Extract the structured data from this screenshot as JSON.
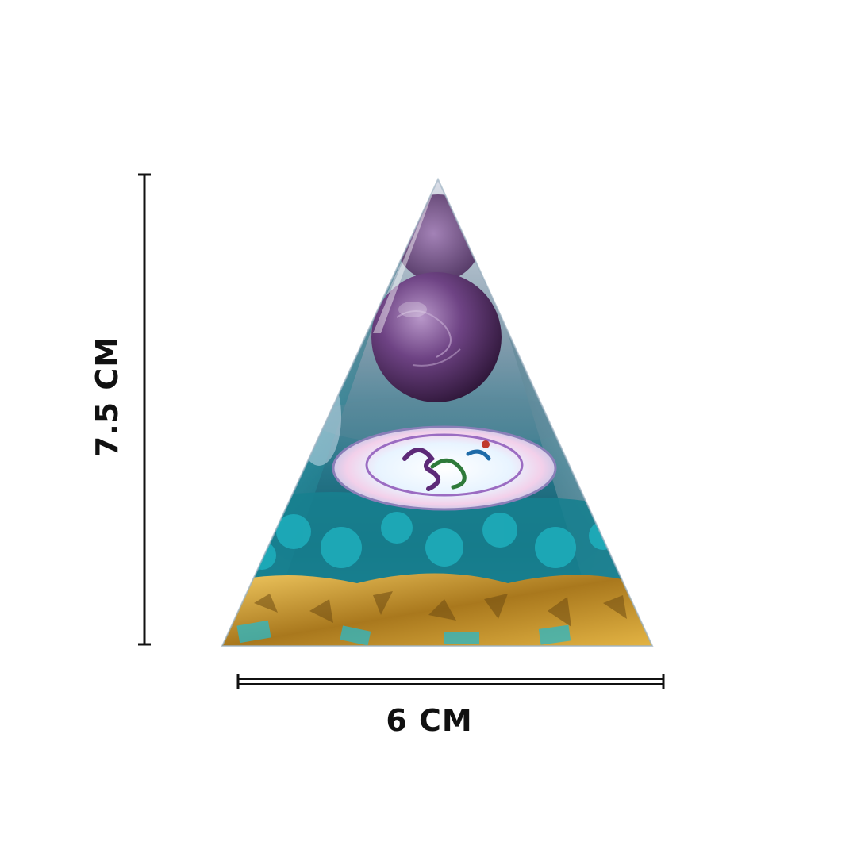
{
  "product": {
    "name_icon": "orgonite-pyramid-amethyst-sphere-om-symbol"
  },
  "dimensions": {
    "height_label": "7.5 CM",
    "width_label": "6 CM"
  },
  "colors": {
    "background": "#ffffff",
    "lines": "#111111",
    "teal": "#1fa6b3",
    "amethyst": "#6b3f7d",
    "gold": "#c79a2a"
  }
}
